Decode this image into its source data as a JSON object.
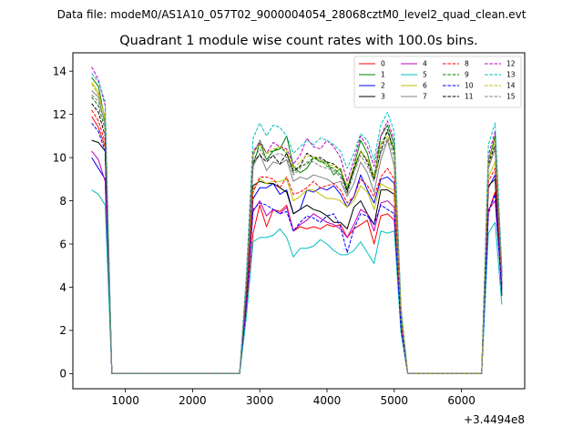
{
  "figure": {
    "suptitle": "Data file: modeM0/AS1A10_057T02_9000004054_28068cztM0_level2_quad_clean.evt",
    "title": "Quadrant 1 module wise count rates with 100.0s bins.",
    "offset_text": "+3.4494e8"
  },
  "chart_data": {
    "type": "line",
    "title": "Quadrant 1 module wise count rates with 100.0s bins.",
    "xlim": [
      220,
      6940
    ],
    "ylim": [
      -0.7,
      14.85
    ],
    "x_ticks": [
      1000,
      2000,
      3000,
      4000,
      5000,
      6000
    ],
    "x_tick_labels": [
      "1000",
      "2000",
      "3000",
      "4000",
      "5000",
      "6000"
    ],
    "y_ticks": [
      0,
      2,
      4,
      6,
      8,
      10,
      12,
      14
    ],
    "y_tick_labels": [
      "0",
      "2",
      "4",
      "6",
      "8",
      "10",
      "12",
      "14"
    ],
    "x_offset": "+3.4494e8",
    "grid": false,
    "legend_position": "top-right",
    "legend_columns": 4,
    "x": [
      500,
      600,
      700,
      800,
      900,
      1000,
      1100,
      1200,
      1300,
      1400,
      1500,
      1600,
      1700,
      1800,
      1900,
      2000,
      2100,
      2200,
      2300,
      2400,
      2500,
      2600,
      2700,
      2800,
      2900,
      3000,
      3100,
      3200,
      3300,
      3400,
      3500,
      3600,
      3700,
      3800,
      3900,
      4000,
      4100,
      4200,
      4300,
      4400,
      4500,
      4600,
      4700,
      4800,
      4900,
      5000,
      5100,
      5200,
      5300,
      5400,
      5500,
      5600,
      5700,
      5800,
      5900,
      6000,
      6100,
      6200,
      6300,
      6400,
      6500,
      6600
    ],
    "series": [
      {
        "name": "0",
        "color": "#ff0000",
        "dash": "solid",
        "values": [
          11.9,
          11.4,
          10.5,
          0.0,
          0.0,
          0.0,
          0.0,
          0.0,
          0.0,
          0.0,
          0.0,
          0.0,
          0.0,
          0.0,
          0.0,
          0.0,
          0.0,
          0.0,
          0.0,
          0.0,
          0.0,
          0.0,
          0.0,
          3.0,
          6.5,
          7.8,
          6.8,
          7.6,
          7.5,
          7.8,
          6.6,
          6.8,
          6.7,
          6.8,
          6.7,
          6.9,
          6.8,
          6.9,
          6.3,
          6.7,
          6.9,
          7.1,
          6.0,
          7.3,
          7.4,
          7.1,
          2.0,
          0.0,
          0.0,
          0.0,
          0.0,
          0.0,
          0.0,
          0.0,
          0.0,
          0.0,
          0.0,
          0.0,
          0.0,
          7.5,
          8.4,
          4.0
        ]
      },
      {
        "name": "1",
        "color": "#008000",
        "dash": "solid",
        "values": [
          13.7,
          13.3,
          11.7,
          0.0,
          0.0,
          0.0,
          0.0,
          0.0,
          0.0,
          0.0,
          0.0,
          0.0,
          0.0,
          0.0,
          0.0,
          0.0,
          0.0,
          0.0,
          0.0,
          0.0,
          0.0,
          0.0,
          0.0,
          4.2,
          9.6,
          10.7,
          9.9,
          10.3,
          10.4,
          11.0,
          9.6,
          9.3,
          9.5,
          10.0,
          9.8,
          9.8,
          9.2,
          9.5,
          8.5,
          9.6,
          10.8,
          10.2,
          9.0,
          11.0,
          11.5,
          10.6,
          2.9,
          0.0,
          0.0,
          0.0,
          0.0,
          0.0,
          0.0,
          0.0,
          0.0,
          0.0,
          0.0,
          0.0,
          0.0,
          9.8,
          11.0,
          4.7
        ]
      },
      {
        "name": "2",
        "color": "#0000ff",
        "dash": "solid",
        "values": [
          10.0,
          9.5,
          9.0,
          0.0,
          0.0,
          0.0,
          0.0,
          0.0,
          0.0,
          0.0,
          0.0,
          0.0,
          0.0,
          0.0,
          0.0,
          0.0,
          0.0,
          0.0,
          0.0,
          0.0,
          0.0,
          0.0,
          0.0,
          3.4,
          8.1,
          8.6,
          8.6,
          8.8,
          8.3,
          8.5,
          7.4,
          7.6,
          8.5,
          8.4,
          8.6,
          8.5,
          8.7,
          8.3,
          7.7,
          8.2,
          9.2,
          8.5,
          7.9,
          9.0,
          9.1,
          8.8,
          2.5,
          0.0,
          0.0,
          0.0,
          0.0,
          0.0,
          0.0,
          0.0,
          0.0,
          0.0,
          0.0,
          0.0,
          0.0,
          8.6,
          9.2,
          4.2
        ]
      },
      {
        "name": "3",
        "color": "#000000",
        "dash": "solid",
        "values": [
          10.8,
          10.7,
          10.3,
          0.0,
          0.0,
          0.0,
          0.0,
          0.0,
          0.0,
          0.0,
          0.0,
          0.0,
          0.0,
          0.0,
          0.0,
          0.0,
          0.0,
          0.0,
          0.0,
          0.0,
          0.0,
          0.0,
          0.0,
          3.5,
          8.7,
          8.9,
          8.8,
          8.8,
          8.6,
          8.4,
          7.4,
          7.6,
          7.8,
          7.6,
          7.5,
          7.3,
          7.0,
          7.0,
          6.7,
          7.7,
          8.0,
          7.4,
          6.9,
          8.5,
          8.5,
          8.3,
          2.3,
          0.0,
          0.0,
          0.0,
          0.0,
          0.0,
          0.0,
          0.0,
          0.0,
          0.0,
          0.0,
          0.0,
          0.0,
          8.7,
          9.0,
          3.6
        ]
      },
      {
        "name": "4",
        "color": "#bf00bf",
        "dash": "solid",
        "values": [
          10.3,
          9.9,
          8.9,
          0.0,
          0.0,
          0.0,
          0.0,
          0.0,
          0.0,
          0.0,
          0.0,
          0.0,
          0.0,
          0.0,
          0.0,
          0.0,
          0.0,
          0.0,
          0.0,
          0.0,
          0.0,
          0.0,
          0.0,
          3.3,
          7.5,
          8.0,
          7.3,
          7.6,
          7.4,
          7.7,
          6.6,
          6.9,
          7.1,
          7.4,
          7.2,
          7.0,
          6.9,
          6.7,
          6.3,
          6.9,
          7.6,
          7.4,
          6.6,
          7.9,
          8.0,
          7.7,
          2.2,
          0.0,
          0.0,
          0.0,
          0.0,
          0.0,
          0.0,
          0.0,
          0.0,
          0.0,
          0.0,
          0.0,
          0.0,
          7.6,
          8.0,
          3.9
        ]
      },
      {
        "name": "5",
        "color": "#00bfbf",
        "dash": "solid",
        "values": [
          8.5,
          8.3,
          7.8,
          0.0,
          0.0,
          0.0,
          0.0,
          0.0,
          0.0,
          0.0,
          0.0,
          0.0,
          0.0,
          0.0,
          0.0,
          0.0,
          0.0,
          0.0,
          0.0,
          0.0,
          0.0,
          0.0,
          0.0,
          2.6,
          6.1,
          6.3,
          6.3,
          6.4,
          6.7,
          6.3,
          5.4,
          5.8,
          5.8,
          5.9,
          6.2,
          6.0,
          5.7,
          5.5,
          5.5,
          5.7,
          6.1,
          5.6,
          5.1,
          6.6,
          6.5,
          6.6,
          1.9,
          0.0,
          0.0,
          0.0,
          0.0,
          0.0,
          0.0,
          0.0,
          0.0,
          0.0,
          0.0,
          0.0,
          0.0,
          6.5,
          7.0,
          3.2
        ]
      },
      {
        "name": "6",
        "color": "#bfbf00",
        "dash": "solid",
        "values": [
          13.5,
          13.0,
          11.8,
          0.0,
          0.0,
          0.0,
          0.0,
          0.0,
          0.0,
          0.0,
          0.0,
          0.0,
          0.0,
          0.0,
          0.0,
          0.0,
          0.0,
          0.0,
          0.0,
          0.0,
          0.0,
          0.0,
          0.0,
          3.9,
          8.5,
          9.0,
          8.8,
          8.9,
          8.9,
          9.0,
          8.0,
          8.2,
          8.5,
          8.5,
          8.3,
          8.1,
          8.1,
          8.0,
          7.7,
          8.0,
          8.7,
          8.4,
          7.6,
          8.8,
          8.6,
          8.5,
          2.4,
          0.0,
          0.0,
          0.0,
          0.0,
          0.0,
          0.0,
          0.0,
          0.0,
          0.0,
          0.0,
          0.0,
          0.0,
          9.1,
          9.8,
          4.3
        ]
      },
      {
        "name": "7",
        "color": "#808080",
        "dash": "solid",
        "values": [
          13.1,
          12.8,
          11.5,
          0.0,
          0.0,
          0.0,
          0.0,
          0.0,
          0.0,
          0.0,
          0.0,
          0.0,
          0.0,
          0.0,
          0.0,
          0.0,
          0.0,
          0.0,
          0.0,
          0.0,
          0.0,
          0.0,
          0.0,
          4.0,
          9.6,
          10.2,
          9.4,
          9.8,
          9.7,
          9.9,
          8.9,
          9.1,
          9.0,
          9.2,
          9.1,
          9.0,
          8.8,
          8.9,
          8.2,
          8.8,
          9.8,
          9.3,
          8.4,
          9.9,
          10.8,
          9.6,
          2.7,
          0.0,
          0.0,
          0.0,
          0.0,
          0.0,
          0.0,
          0.0,
          0.0,
          0.0,
          0.0,
          0.0,
          0.0,
          9.5,
          10.4,
          4.5
        ]
      },
      {
        "name": "8",
        "color": "#ff0000",
        "dash": "dashed",
        "values": [
          12.2,
          11.7,
          10.7,
          0.0,
          0.0,
          0.0,
          0.0,
          0.0,
          0.0,
          0.0,
          0.0,
          0.0,
          0.0,
          0.0,
          0.0,
          0.0,
          0.0,
          0.0,
          0.0,
          0.0,
          0.0,
          0.0,
          0.0,
          3.5,
          8.4,
          9.1,
          9.1,
          9.0,
          8.6,
          9.1,
          8.3,
          8.4,
          8.6,
          8.9,
          8.6,
          8.7,
          8.8,
          8.5,
          7.9,
          8.2,
          9.0,
          8.7,
          8.2,
          9.1,
          9.5,
          9.0,
          2.5,
          0.0,
          0.0,
          0.0,
          0.0,
          0.0,
          0.0,
          0.0,
          0.0,
          0.0,
          0.0,
          0.0,
          0.0,
          8.9,
          9.5,
          4.1
        ]
      },
      {
        "name": "9",
        "color": "#008000",
        "dash": "dashed",
        "values": [
          12.8,
          12.4,
          11.3,
          0.0,
          0.0,
          0.0,
          0.0,
          0.0,
          0.0,
          0.0,
          0.0,
          0.0,
          0.0,
          0.0,
          0.0,
          0.0,
          0.0,
          0.0,
          0.0,
          0.0,
          0.0,
          0.0,
          0.0,
          4.1,
          10.1,
          10.8,
          10.2,
          10.3,
          10.5,
          10.2,
          9.3,
          9.6,
          9.7,
          10.0,
          9.9,
          9.6,
          9.5,
          9.2,
          8.6,
          9.4,
          10.3,
          9.9,
          9.2,
          10.6,
          11.2,
          10.4,
          2.9,
          0.0,
          0.0,
          0.0,
          0.0,
          0.0,
          0.0,
          0.0,
          0.0,
          0.0,
          0.0,
          0.0,
          0.0,
          9.9,
          10.8,
          4.6
        ]
      },
      {
        "name": "10",
        "color": "#0000ff",
        "dash": "dashed",
        "values": [
          11.6,
          11.2,
          10.3,
          0.0,
          0.0,
          0.0,
          0.0,
          0.0,
          0.0,
          0.0,
          0.0,
          0.0,
          0.0,
          0.0,
          0.0,
          0.0,
          0.0,
          0.0,
          0.0,
          0.0,
          0.0,
          0.0,
          0.0,
          3.2,
          7.6,
          7.9,
          7.8,
          7.6,
          7.4,
          7.5,
          6.6,
          7.0,
          7.3,
          7.2,
          7.0,
          7.3,
          7.4,
          6.8,
          5.6,
          6.7,
          7.4,
          7.3,
          6.9,
          7.8,
          7.6,
          7.4,
          2.1,
          0.0,
          0.0,
          0.0,
          0.0,
          0.0,
          0.0,
          0.0,
          0.0,
          0.0,
          0.0,
          0.0,
          0.0,
          7.4,
          8.3,
          3.8
        ]
      },
      {
        "name": "11",
        "color": "#000000",
        "dash": "dashed",
        "values": [
          12.5,
          12.1,
          11.0,
          0.0,
          0.0,
          0.0,
          0.0,
          0.0,
          0.0,
          0.0,
          0.0,
          0.0,
          0.0,
          0.0,
          0.0,
          0.0,
          0.0,
          0.0,
          0.0,
          0.0,
          0.0,
          0.0,
          0.0,
          4.0,
          9.8,
          10.1,
          9.8,
          10.1,
          9.7,
          10.2,
          9.4,
          9.6,
          10.2,
          10.0,
          10.0,
          9.8,
          9.7,
          9.4,
          8.4,
          9.5,
          10.3,
          9.8,
          9.0,
          10.3,
          11.3,
          10.2,
          2.8,
          0.0,
          0.0,
          0.0,
          0.0,
          0.0,
          0.0,
          0.0,
          0.0,
          0.0,
          0.0,
          0.0,
          0.0,
          9.7,
          10.6,
          4.5
        ]
      },
      {
        "name": "12",
        "color": "#bf00bf",
        "dash": "dashed",
        "values": [
          14.2,
          13.6,
          12.4,
          0.0,
          0.0,
          0.0,
          0.0,
          0.0,
          0.0,
          0.0,
          0.0,
          0.0,
          0.0,
          0.0,
          0.0,
          0.0,
          0.0,
          0.0,
          0.0,
          0.0,
          0.0,
          0.0,
          0.0,
          4.3,
          10.3,
          10.7,
          10.2,
          10.7,
          10.5,
          10.4,
          9.7,
          10.1,
          10.9,
          10.5,
          10.4,
          10.8,
          10.5,
          10.0,
          8.9,
          9.9,
          11.0,
          10.5,
          9.6,
          11.0,
          11.7,
          10.8,
          3.0,
          0.0,
          0.0,
          0.0,
          0.0,
          0.0,
          0.0,
          0.0,
          0.0,
          0.0,
          0.0,
          0.0,
          0.0,
          10.1,
          11.2,
          4.7
        ]
      },
      {
        "name": "13",
        "color": "#00bfbf",
        "dash": "dashed",
        "values": [
          13.9,
          13.5,
          12.6,
          0.0,
          0.0,
          0.0,
          0.0,
          0.0,
          0.0,
          0.0,
          0.0,
          0.0,
          0.0,
          0.0,
          0.0,
          0.0,
          0.0,
          0.0,
          0.0,
          0.0,
          0.0,
          0.0,
          0.0,
          4.6,
          10.9,
          11.6,
          11.0,
          11.5,
          11.4,
          11.0,
          10.2,
          10.5,
          10.8,
          10.6,
          10.9,
          10.8,
          10.6,
          10.3,
          9.5,
          10.2,
          11.1,
          10.8,
          9.9,
          11.5,
          12.1,
          11.2,
          3.1,
          0.0,
          0.0,
          0.0,
          0.0,
          0.0,
          0.0,
          0.0,
          0.0,
          0.0,
          0.0,
          0.0,
          0.0,
          10.6,
          11.6,
          4.9
        ]
      },
      {
        "name": "14",
        "color": "#bfbf00",
        "dash": "dashed",
        "values": [
          13.4,
          12.9,
          11.9,
          0.0,
          0.0,
          0.0,
          0.0,
          0.0,
          0.0,
          0.0,
          0.0,
          0.0,
          0.0,
          0.0,
          0.0,
          0.0,
          0.0,
          0.0,
          0.0,
          0.0,
          0.0,
          0.0,
          0.0,
          4.2,
          10.2,
          10.6,
          10.2,
          10.4,
          10.5,
          10.3,
          9.5,
          9.8,
          10.1,
          10.0,
          9.9,
          9.7,
          9.6,
          9.4,
          8.7,
          9.6,
          10.3,
          9.9,
          9.1,
          10.6,
          11.0,
          10.3,
          2.9,
          0.0,
          0.0,
          0.0,
          0.0,
          0.0,
          0.0,
          0.0,
          0.0,
          0.0,
          0.0,
          0.0,
          0.0,
          9.8,
          10.8,
          4.6
        ]
      },
      {
        "name": "15",
        "color": "#808080",
        "dash": "dashed",
        "values": [
          12.9,
          12.6,
          11.6,
          0.0,
          0.0,
          0.0,
          0.0,
          0.0,
          0.0,
          0.0,
          0.0,
          0.0,
          0.0,
          0.0,
          0.0,
          0.0,
          0.0,
          0.0,
          0.0,
          0.0,
          0.0,
          0.0,
          0.0,
          4.0,
          9.9,
          10.4,
          9.9,
          10.1,
          10.2,
          10.0,
          9.2,
          9.5,
          9.8,
          9.8,
          9.6,
          9.5,
          9.4,
          9.1,
          8.3,
          9.3,
          10.1,
          9.6,
          8.9,
          10.2,
          10.9,
          10.0,
          2.8,
          0.0,
          0.0,
          0.0,
          0.0,
          0.0,
          0.0,
          0.0,
          0.0,
          0.0,
          0.0,
          0.0,
          0.0,
          9.6,
          10.5,
          4.4
        ]
      }
    ]
  }
}
